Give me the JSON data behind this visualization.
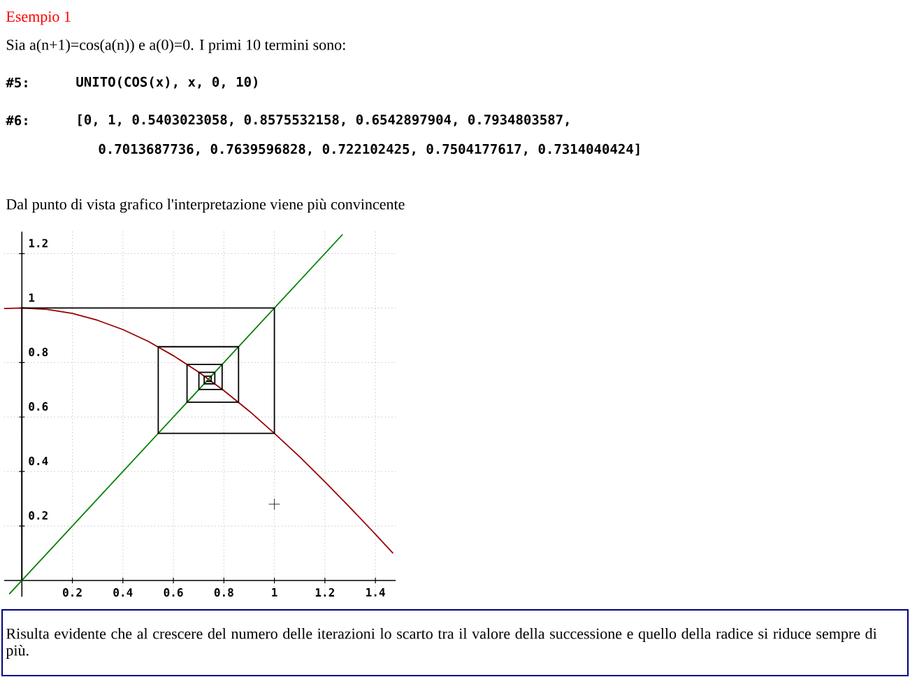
{
  "chart_data": {
    "type": "line",
    "title": "Esempio 1",
    "subtitle": "Sia a(n+1)=cos(a(n)) e a(0)=0. I primi 10 termini sono:",
    "annotations": [
      "#5:",
      "UNITO(COS(x), x, 0, 10)",
      "#6:",
      "[0, 1, 0.5403023058, 0.8575532158, 0.6542897904, 0.7934803587,",
      "0.7013687736, 0.7639596828, 0.722102425, 0.7504177617, 0.7314040424]",
      "Dal punto di vista grafico l'interpretazione viene più convincente",
      "Risulta evidente che al crescere del numero delle iterazioni lo scarto tra il valore della successione e quello della radice si riduce sempre di più."
    ],
    "xlim": [
      -0.07,
      1.48
    ],
    "ylim": [
      -0.06,
      1.28
    ],
    "xticks": [
      0.2,
      0.4,
      0.6,
      0.8,
      1,
      1.2,
      1.4
    ],
    "yticks": [
      0.2,
      0.4,
      0.6,
      0.8,
      1,
      1.2
    ],
    "grid": true,
    "series": [
      {
        "color": "#990000",
        "x": [
          -0.07,
          0,
          0.1,
          0.2,
          0.3,
          0.4,
          0.5,
          0.6,
          0.7,
          0.8,
          0.9,
          1.0,
          1.1,
          1.2,
          1.3,
          1.4,
          1.47
        ],
        "values": [
          0.998,
          1,
          0.995,
          0.98,
          0.955,
          0.921,
          0.878,
          0.825,
          0.765,
          0.697,
          0.622,
          0.54,
          0.454,
          0.362,
          0.267,
          0.17,
          0.1
        ]
      },
      {
        "color": "#008000",
        "x": [
          -0.05,
          1.27
        ],
        "values": [
          -0.05,
          1.27
        ]
      },
      {
        "color": "#000000",
        "x": [
          0,
          0,
          1,
          1,
          0.54,
          0.54,
          0.858,
          0.858,
          0.654,
          0.654,
          0.793,
          0.793,
          0.701,
          0.701,
          0.764,
          0.764,
          0.722,
          0.722,
          0.75,
          0.75,
          0.731
        ],
        "values": [
          0,
          1,
          1,
          0.54,
          0.54,
          0.858,
          0.858,
          0.654,
          0.654,
          0.793,
          0.793,
          0.701,
          0.701,
          0.764,
          0.764,
          0.722,
          0.722,
          0.75,
          0.75,
          0.731,
          0.731
        ]
      },
      {
        "type": "scatter",
        "color": "#000000",
        "marker": "cross",
        "x": [
          1
        ],
        "values": [
          0.28
        ]
      }
    ]
  }
}
